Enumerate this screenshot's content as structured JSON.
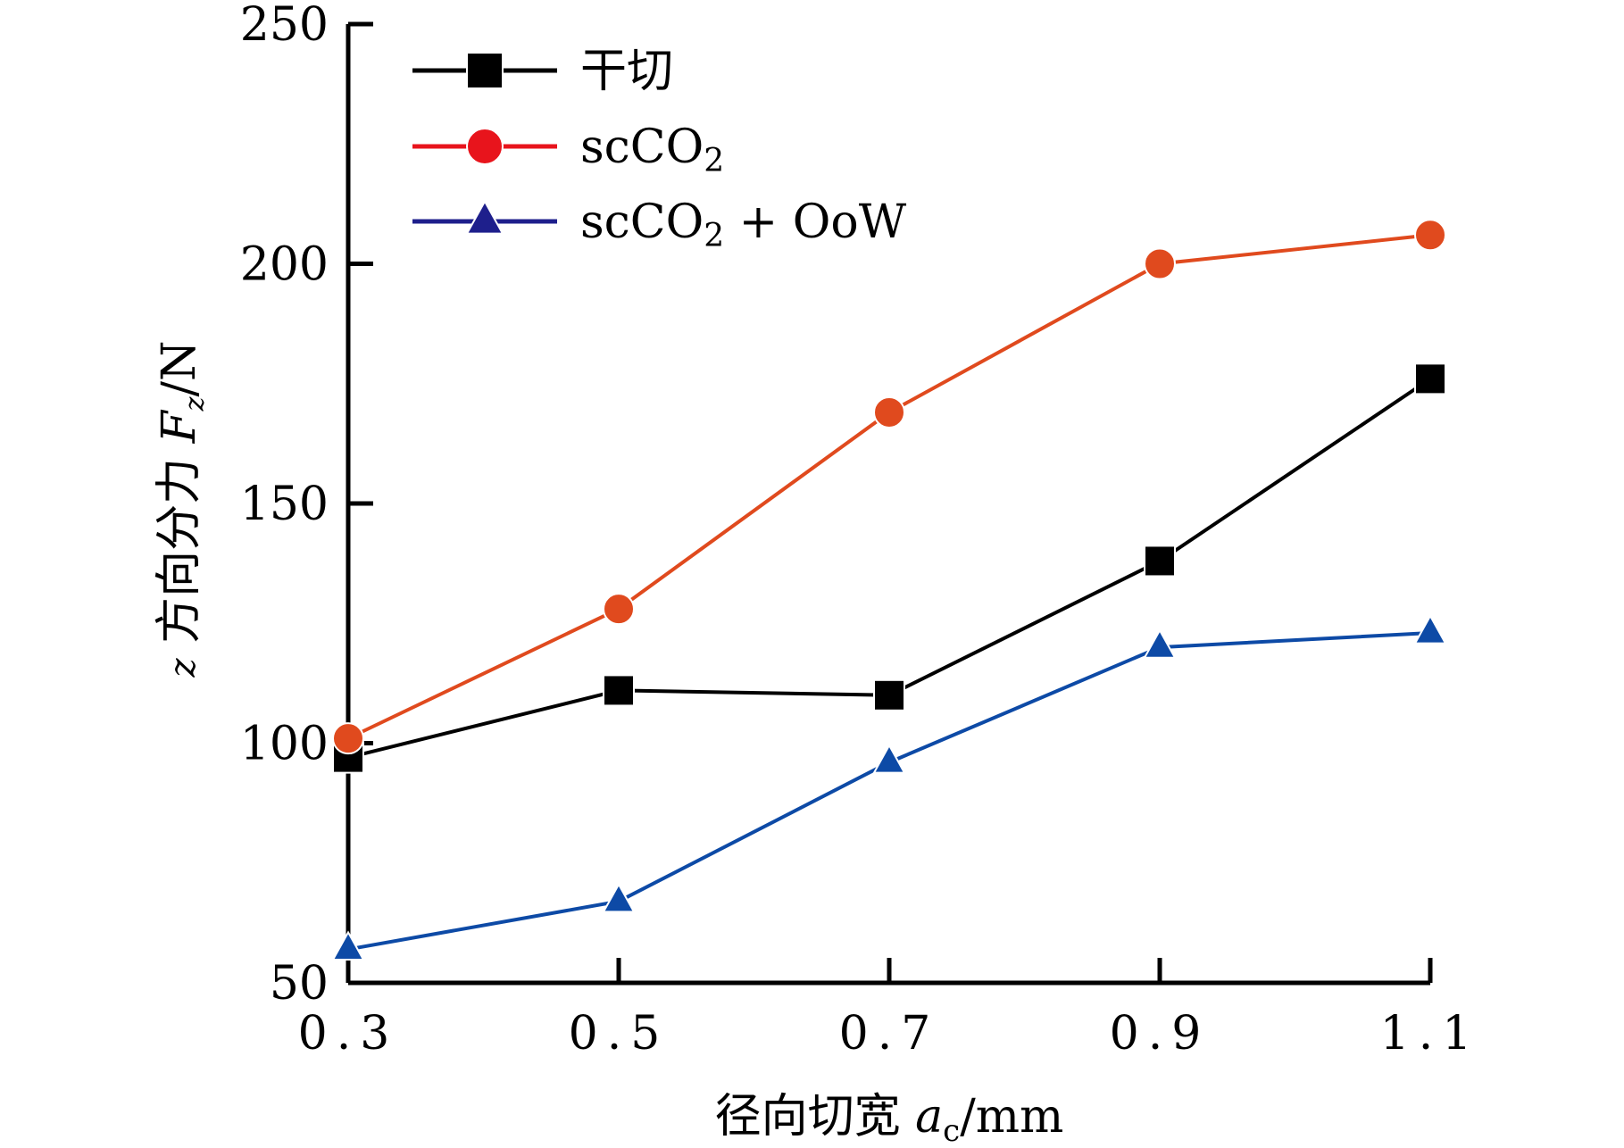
{
  "chart_data": {
    "type": "line",
    "x": [
      0.3,
      0.5,
      0.7,
      0.9,
      1.1
    ],
    "x_tick_labels": [
      "0.3",
      "0.5",
      "0.7",
      "0.9",
      "1.1"
    ],
    "y_ticks": [
      50,
      100,
      150,
      200,
      250
    ],
    "y_tick_labels": [
      "50",
      "100",
      "150",
      "200",
      "250"
    ],
    "xlim": [
      0.3,
      1.1
    ],
    "ylim": [
      50,
      250
    ],
    "grid": false,
    "legend_position": "top-left",
    "xlabel": {
      "prefix": "径向切宽 ",
      "var": "a",
      "sub": "c",
      "unit": "/mm"
    },
    "ylabel": {
      "prefix": "z",
      "text": " 方向分力 ",
      "var": "F",
      "sub": "z",
      "unit": "/N"
    },
    "series": [
      {
        "name": "干切",
        "marker": "square",
        "color": "#000000",
        "values": [
          97,
          111,
          110,
          138,
          176
        ]
      },
      {
        "name": "scCO2",
        "name_base": "scCO",
        "name_sub": "2",
        "name_suffix": "",
        "marker": "circle",
        "color": "#e04a1e",
        "legend_color": "#e8141c",
        "values": [
          101,
          128,
          169,
          200,
          206
        ]
      },
      {
        "name": "scCO2 + OoW",
        "name_base": "scCO",
        "name_sub": "2",
        "name_suffix": " + OoW",
        "marker": "triangle",
        "color": "#0d4aa6",
        "legend_color": "#1e1f8c",
        "values": [
          57,
          67,
          96,
          120,
          123
        ]
      }
    ]
  }
}
